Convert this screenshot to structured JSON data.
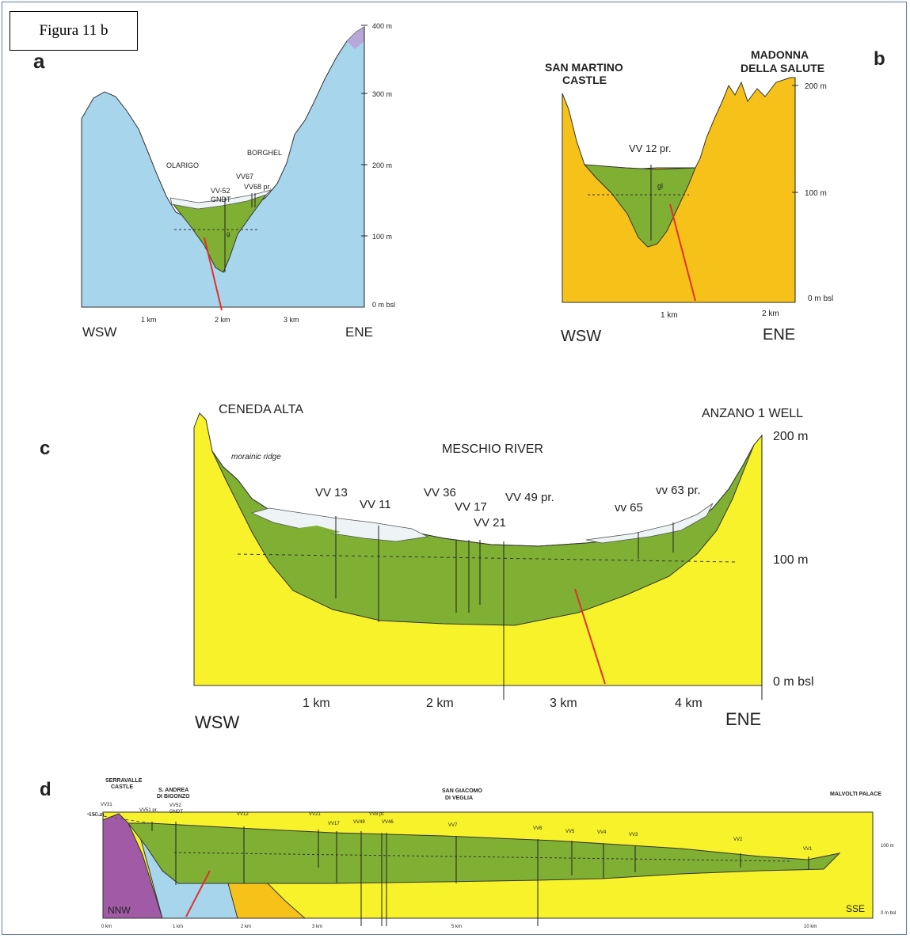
{
  "figure_label": "Figura 11 b",
  "colors": {
    "bedrock_a": "#a7d5ec",
    "bedrock_yellow": "#f7f22a",
    "bedrock_orange": "#f6c21a",
    "bedrock_purple": "#a15ba6",
    "infill_green": "#7fb034",
    "surface_white": "#eef3f6",
    "fault_red": "#e2312a"
  },
  "panel_a": {
    "letter": "a",
    "places": [
      "OLARIGO",
      "BORGHEL"
    ],
    "wells": [
      "VV67",
      "VV-52",
      "GNDT",
      "VV68 pr."
    ],
    "unit": "g",
    "y_ticks": [
      "400 m",
      "300 m",
      "200 m",
      "100 m",
      "0 m bsl"
    ],
    "x_ticks": [
      "1 km",
      "2 km",
      "3 km"
    ],
    "dir_left": "WSW",
    "dir_right": "ENE"
  },
  "panel_b": {
    "letter": "b",
    "places": [
      "SAN MARTINO",
      "CASTLE",
      "MADONNA",
      "DELLA SALUTE"
    ],
    "wells": [
      "VV 12 pr."
    ],
    "unit": "gl",
    "y_ticks": [
      "200 m",
      "100 m",
      "0 m bsl"
    ],
    "x_ticks": [
      "1 km",
      "2 km"
    ],
    "dir_left": "WSW",
    "dir_right": "ENE"
  },
  "panel_c": {
    "letter": "c",
    "places": [
      "CENEDA ALTA",
      "ANZANO 1 WELL",
      "MESCHIO RIVER"
    ],
    "note": "morainic ridge",
    "wells": [
      "VV 13",
      "VV 11",
      "VV 36",
      "VV 17",
      "VV 21",
      "VV 49 pr.",
      "vv 65",
      "vv 63 pr."
    ],
    "y_ticks": [
      "200 m",
      "100 m",
      "0 m bsl"
    ],
    "x_ticks": [
      "1 km",
      "2 km",
      "3 km",
      "4 km"
    ],
    "dir_left": "WSW",
    "dir_right": "ENE"
  },
  "panel_d": {
    "letter": "d",
    "places": [
      "SERRAVALLE",
      "CASTLE",
      "S. ANDREA",
      "DI BIGONZO",
      "SAN GIACOMO",
      "DI VEGLIA",
      "MALVOLTI PALACE"
    ],
    "wells": [
      "VV31",
      "VV51 pr.",
      "VV52",
      "GNDT",
      "VV12",
      "VV21",
      "VV17",
      "VV49",
      "VV8 pr.",
      "VV46",
      "VV7",
      "VV6",
      "VV5",
      "VV4",
      "VV3",
      "VV2",
      "VV1"
    ],
    "y_ticks_left": [
      "150 m"
    ],
    "y_ticks_right": [
      "100 m",
      "0 m bsl"
    ],
    "x_ticks": [
      "0 km",
      "1 km",
      "2 km",
      "3 km",
      "5 km",
      "10 km"
    ],
    "dir_left": "NNW",
    "dir_right": "SSE"
  }
}
